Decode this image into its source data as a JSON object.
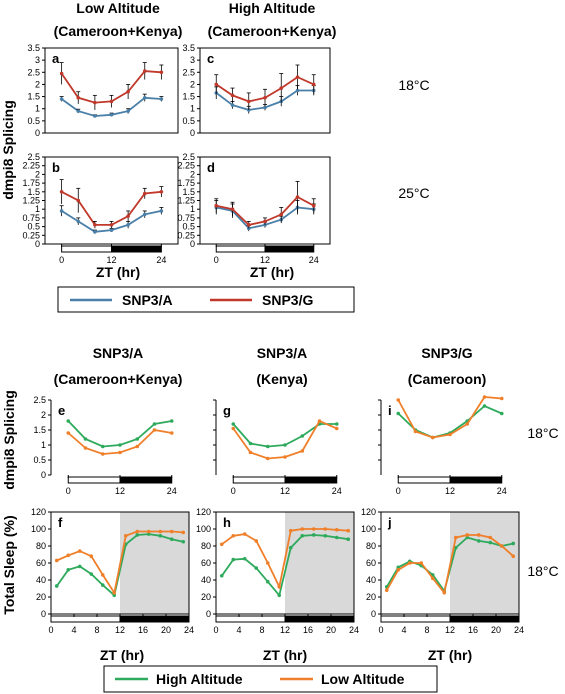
{
  "top_headers": {
    "low_l1": "Low Altitude",
    "low_l2": "(Cameroon+Kenya)",
    "high_l1": "High Altitude",
    "high_l2": "(Cameroon+Kenya)"
  },
  "top_ylabel": "dmpi8 Splicing",
  "top_temps": {
    "t18": "18°C",
    "t25": "25°C"
  },
  "top_xlabel": "ZT (hr)",
  "top_legend": [
    {
      "name": "SNP3/A",
      "color": "#4a7fa8"
    },
    {
      "name": "SNP3/G",
      "color": "#c0392b"
    }
  ],
  "bottom_headers": [
    {
      "l1": "SNP3/A",
      "l2": "(Cameroon+Kenya)"
    },
    {
      "l1": "SNP3/A",
      "l2": "(Kenya)"
    },
    {
      "l1": "SNP3/G",
      "l2": "(Cameroon)"
    }
  ],
  "bottom_ylabel_top": "dmpi8 Splicing",
  "bottom_ylabel_bottom": "Total Sleep (%)",
  "bottom_temps": {
    "row1": "18°C",
    "row2": "18°C"
  },
  "bottom_xlabel": "ZT (hr)",
  "bottom_legend": [
    {
      "name": "High Altitude",
      "color": "#2eaa5c"
    },
    {
      "name": "Low Altitude",
      "color": "#f07f2a"
    }
  ],
  "chart_data": [
    {
      "panel": "a",
      "type": "line",
      "x": [
        0,
        4,
        8,
        12,
        16,
        20,
        24
      ],
      "ylim": [
        0,
        3.5
      ],
      "yticks": [
        "0",
        "0.5",
        "1",
        "1.5",
        "2",
        "2.5",
        "3",
        "3.5"
      ],
      "xticks": [],
      "series": [
        {
          "name": "SNP3/A",
          "values": [
            1.4,
            0.9,
            0.7,
            0.75,
            0.9,
            1.45,
            1.4
          ],
          "err": [
            0.1,
            0.08,
            0.05,
            0.07,
            0.1,
            0.15,
            0.1
          ]
        },
        {
          "name": "SNP3/G",
          "values": [
            2.45,
            1.45,
            1.25,
            1.3,
            1.7,
            2.55,
            2.5
          ],
          "err": [
            0.45,
            0.25,
            0.3,
            0.25,
            0.3,
            0.35,
            0.3
          ]
        }
      ]
    },
    {
      "panel": "c",
      "type": "line",
      "x": [
        0,
        4,
        8,
        12,
        16,
        20,
        24
      ],
      "ylim": [
        0,
        3.5
      ],
      "yticks": [
        "0",
        "0.5",
        "1",
        "1.5",
        "2",
        "2.5",
        "3",
        "3.5"
      ],
      "xticks": [],
      "series": [
        {
          "name": "SNP3/A",
          "values": [
            1.65,
            1.15,
            0.95,
            1.05,
            1.3,
            1.75,
            1.75
          ],
          "err": [
            0.25,
            0.15,
            0.15,
            0.12,
            0.2,
            0.2,
            0.2
          ]
        },
        {
          "name": "SNP3/G",
          "values": [
            2.0,
            1.55,
            1.3,
            1.45,
            1.85,
            2.3,
            2.0
          ],
          "err": [
            0.4,
            0.3,
            0.35,
            0.35,
            0.6,
            0.5,
            0.4
          ]
        }
      ]
    },
    {
      "panel": "b",
      "type": "line",
      "x": [
        0,
        4,
        8,
        12,
        16,
        20,
        24
      ],
      "ylim": [
        0,
        2.5
      ],
      "yticks": [
        "0",
        "0.25",
        "0.5",
        "0.75",
        "1",
        "1.25",
        "1.5",
        "1.75",
        "2",
        "2.25",
        "2.5"
      ],
      "xticks": [
        "0",
        "12",
        "24"
      ],
      "series": [
        {
          "name": "SNP3/A",
          "values": [
            0.95,
            0.65,
            0.35,
            0.4,
            0.55,
            0.85,
            0.95
          ],
          "err": [
            0.15,
            0.1,
            0.05,
            0.05,
            0.1,
            0.1,
            0.1
          ]
        },
        {
          "name": "SNP3/G",
          "values": [
            1.5,
            1.25,
            0.55,
            0.55,
            0.8,
            1.45,
            1.5
          ],
          "err": [
            0.35,
            0.35,
            0.1,
            0.1,
            0.15,
            0.15,
            0.15
          ]
        }
      ]
    },
    {
      "panel": "d",
      "type": "line",
      "x": [
        0,
        4,
        8,
        12,
        16,
        20,
        24
      ],
      "ylim": [
        0,
        2.5
      ],
      "yticks": [
        "0",
        "0.25",
        "0.5",
        "0.75",
        "1",
        "1.25",
        "1.5",
        "1.75",
        "2",
        "2.25",
        "2.5"
      ],
      "xticks": [
        "0",
        "12",
        "24"
      ],
      "series": [
        {
          "name": "SNP3/A",
          "values": [
            1.05,
            0.95,
            0.45,
            0.55,
            0.7,
            1.05,
            1.0
          ],
          "err": [
            0.2,
            0.2,
            0.08,
            0.08,
            0.1,
            0.2,
            0.15
          ]
        },
        {
          "name": "SNP3/G",
          "values": [
            1.1,
            1.0,
            0.55,
            0.65,
            0.85,
            1.35,
            1.1
          ],
          "err": [
            0.2,
            0.2,
            0.1,
            0.1,
            0.2,
            0.45,
            0.2
          ]
        }
      ]
    },
    {
      "panel": "e",
      "type": "line",
      "x": [
        0,
        4,
        8,
        12,
        16,
        20,
        24
      ],
      "ylim": [
        0,
        2.5
      ],
      "yticks": [
        "0",
        "0.5",
        "1",
        "1.5",
        "2",
        "2.5"
      ],
      "xticks": [
        "0",
        "12",
        "24"
      ],
      "series": [
        {
          "name": "High Altitude",
          "values": [
            1.8,
            1.2,
            0.95,
            1.0,
            1.2,
            1.7,
            1.8
          ]
        },
        {
          "name": "Low Altitude",
          "values": [
            1.4,
            0.9,
            0.7,
            0.75,
            0.95,
            1.5,
            1.4
          ]
        }
      ]
    },
    {
      "panel": "g",
      "type": "line",
      "x": [
        0,
        4,
        8,
        12,
        16,
        20,
        24
      ],
      "ylim": [
        0,
        2.5
      ],
      "yticks": [],
      "xticks": [
        "0",
        "12",
        "24"
      ],
      "series": [
        {
          "name": "High Altitude",
          "values": [
            1.7,
            1.05,
            0.95,
            1.0,
            1.3,
            1.7,
            1.7
          ]
        },
        {
          "name": "Low Altitude",
          "values": [
            1.55,
            0.75,
            0.55,
            0.6,
            0.8,
            1.8,
            1.55
          ]
        }
      ]
    },
    {
      "panel": "i",
      "type": "line",
      "x": [
        0,
        4,
        8,
        12,
        16,
        20,
        24
      ],
      "ylim": [
        0,
        2.5
      ],
      "yticks": [],
      "xticks": [
        "0",
        "12",
        "24"
      ],
      "series": [
        {
          "name": "High Altitude",
          "values": [
            2.05,
            1.5,
            1.25,
            1.4,
            1.8,
            2.3,
            2.05
          ]
        },
        {
          "name": "Low Altitude",
          "values": [
            2.5,
            1.45,
            1.25,
            1.35,
            1.7,
            2.6,
            2.55
          ]
        }
      ]
    },
    {
      "panel": "f",
      "type": "line",
      "x": [
        1,
        3,
        5,
        7,
        9,
        11,
        13,
        15,
        17,
        19,
        21,
        23
      ],
      "ylim": [
        0,
        120
      ],
      "yticks": [
        "0",
        "20",
        "40",
        "60",
        "80",
        "100",
        "120"
      ],
      "xticks": [
        "0",
        "4",
        "8",
        "12",
        "16",
        "20",
        "24"
      ],
      "series": [
        {
          "name": "High Altitude",
          "values": [
            33,
            52,
            56,
            47,
            34,
            22,
            82,
            93,
            94,
            92,
            88,
            85
          ]
        },
        {
          "name": "Low Altitude",
          "values": [
            63,
            69,
            74,
            68,
            46,
            25,
            92,
            97,
            97,
            97,
            97,
            96
          ]
        }
      ]
    },
    {
      "panel": "h",
      "type": "line",
      "x": [
        1,
        3,
        5,
        7,
        9,
        11,
        13,
        15,
        17,
        19,
        21,
        23
      ],
      "ylim": [
        0,
        120
      ],
      "yticks": [
        "0",
        "20",
        "40",
        "60",
        "80",
        "100",
        "120"
      ],
      "xticks": [
        "0",
        "4",
        "8",
        "12",
        "16",
        "20",
        "24"
      ],
      "series": [
        {
          "name": "High Altitude",
          "values": [
            45,
            64,
            65,
            54,
            38,
            22,
            78,
            92,
            93,
            92,
            90,
            88
          ]
        },
        {
          "name": "Low Altitude",
          "values": [
            82,
            92,
            94,
            86,
            60,
            32,
            98,
            100,
            100,
            100,
            99,
            98
          ]
        }
      ]
    },
    {
      "panel": "j",
      "type": "line",
      "x": [
        1,
        3,
        5,
        7,
        9,
        11,
        13,
        15,
        17,
        19,
        21,
        23
      ],
      "ylim": [
        0,
        120
      ],
      "yticks": [
        "0",
        "20",
        "40",
        "60",
        "80",
        "100",
        "120"
      ],
      "xticks": [
        "0",
        "4",
        "8",
        "12",
        "16",
        "20",
        "24"
      ],
      "series": [
        {
          "name": "High Altitude",
          "values": [
            32,
            55,
            62,
            57,
            46,
            27,
            78,
            90,
            86,
            84,
            80,
            83
          ]
        },
        {
          "name": "Low Altitude",
          "values": [
            28,
            52,
            60,
            60,
            42,
            25,
            90,
            93,
            93,
            90,
            80,
            68
          ]
        }
      ]
    }
  ]
}
